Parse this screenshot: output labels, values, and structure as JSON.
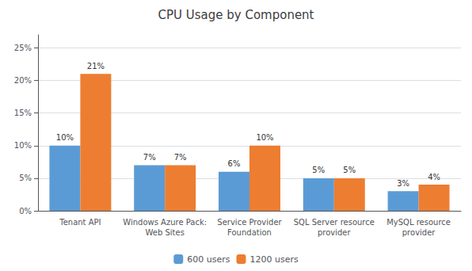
{
  "chart_data": {
    "type": "bar",
    "title": "CPU Usage by Component",
    "categories": [
      "Tenant API",
      "Windows Azure Pack:\nWeb Sites",
      "Service Provider\nFoundation",
      "SQL Server resource\nprovider",
      "MySQL resource\nprovider"
    ],
    "series": [
      {
        "name": "600 users",
        "color": "#5b9bd5",
        "values": [
          10,
          7,
          6,
          5,
          3
        ],
        "value_labels": [
          "10%",
          "7%",
          "6%",
          "5%",
          "3%"
        ]
      },
      {
        "name": "1200 users",
        "color": "#ed7d31",
        "values": [
          21,
          7,
          10,
          5,
          4
        ],
        "value_labels": [
          "21%",
          "7%",
          "10%",
          "5%",
          "4%"
        ]
      }
    ],
    "ylim": [
      0,
      27
    ],
    "yticks": [
      {
        "value": 0,
        "label": "0%"
      },
      {
        "value": 5,
        "label": "5%"
      },
      {
        "value": 10,
        "label": "10%"
      },
      {
        "value": 15,
        "label": "15%"
      },
      {
        "value": 20,
        "label": "20%"
      },
      {
        "value": 25,
        "label": "25%"
      }
    ],
    "grid": true,
    "legend": "bottom",
    "data_labels": true
  }
}
